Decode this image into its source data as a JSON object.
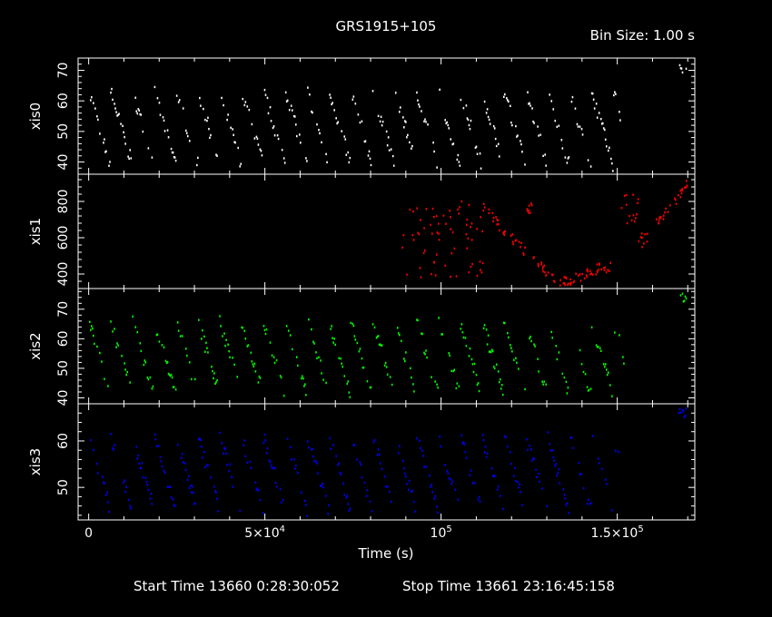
{
  "title": "GRS1915+105",
  "bin_size": "Bin Size: 1.00 s",
  "footer": {
    "start": "Start Time 13660  0:28:30:052",
    "stop": "Stop Time 13661 23:16:45:158"
  },
  "colors": {
    "background": "#000000",
    "axes": "#ffffff",
    "xis0": "#ffffff",
    "xis1": "#ff0000",
    "xis2": "#00ff00",
    "xis3": "#0000ff"
  },
  "chart_data": {
    "type": "scatter",
    "xlabel": "Time (s)",
    "xlim": [
      -3000,
      172000
    ],
    "xticks": [
      {
        "value": 0,
        "base": "0",
        "exp": ""
      },
      {
        "value": 50000,
        "base": "5×10",
        "exp": "4"
      },
      {
        "value": 100000,
        "base": "10",
        "exp": "5"
      },
      {
        "value": 150000,
        "base": "1.5×10",
        "exp": "5"
      }
    ],
    "panels": [
      {
        "name": "xis0",
        "ylabel": "xis0",
        "color": "#ffffff",
        "ylim": [
          36,
          74
        ],
        "yticks": [
          40,
          50,
          60,
          70
        ],
        "gaps": [
          [
            29000,
            30500
          ],
          [
            152000,
            167000
          ]
        ]
      },
      {
        "name": "xis1",
        "ylabel": "xis1",
        "color": "#ff0000",
        "ylim": [
          320,
          950
        ],
        "yticks": [
          400,
          600,
          800
        ],
        "segments": [
          {
            "x": [
              89000,
              112000
            ],
            "y": [
              380,
              800
            ],
            "mode": "scatter"
          },
          {
            "x": [
              112000,
              126000
            ],
            "y": [
              420,
              780
            ],
            "mode": "trend",
            "pts": [
              [
                112000,
                760
              ],
              [
                118000,
                640
              ],
              [
                124000,
                520
              ]
            ]
          },
          {
            "x": [
              126000,
              140000
            ],
            "y": [
              360,
              560
            ],
            "mode": "trend",
            "pts": [
              [
                126000,
                520
              ],
              [
                130000,
                400
              ],
              [
                134000,
                360
              ],
              [
                140000,
                380
              ]
            ]
          },
          {
            "x": [
              140000,
              149000
            ],
            "y": [
              370,
              470
            ],
            "mode": "trend",
            "pts": [
              [
                140000,
                380
              ],
              [
                145000,
                440
              ],
              [
                149000,
                430
              ]
            ]
          },
          {
            "x": [
              151000,
              156000
            ],
            "y": [
              680,
              840
            ],
            "mode": "scatter"
          },
          {
            "x": [
              156000,
              159000
            ],
            "y": [
              540,
              640
            ],
            "mode": "scatter"
          },
          {
            "x": [
              160000,
              170000
            ],
            "y": [
              650,
              920
            ],
            "mode": "trend",
            "pts": [
              [
                160000,
                660
              ],
              [
                165000,
                760
              ],
              [
                170000,
                900
              ]
            ]
          }
        ]
      },
      {
        "name": "xis2",
        "ylabel": "xis2",
        "color": "#00ff00",
        "ylim": [
          38,
          77
        ],
        "yticks": [
          40,
          50,
          60,
          70
        ],
        "gaps": [
          [
            152000,
            167000
          ]
        ]
      },
      {
        "name": "xis3",
        "ylabel": "xis3",
        "color": "#0000ff",
        "ylim": [
          43,
          68
        ],
        "yticks": [
          50,
          60
        ],
        "gaps": [
          [
            151000,
            167000
          ]
        ]
      }
    ]
  }
}
